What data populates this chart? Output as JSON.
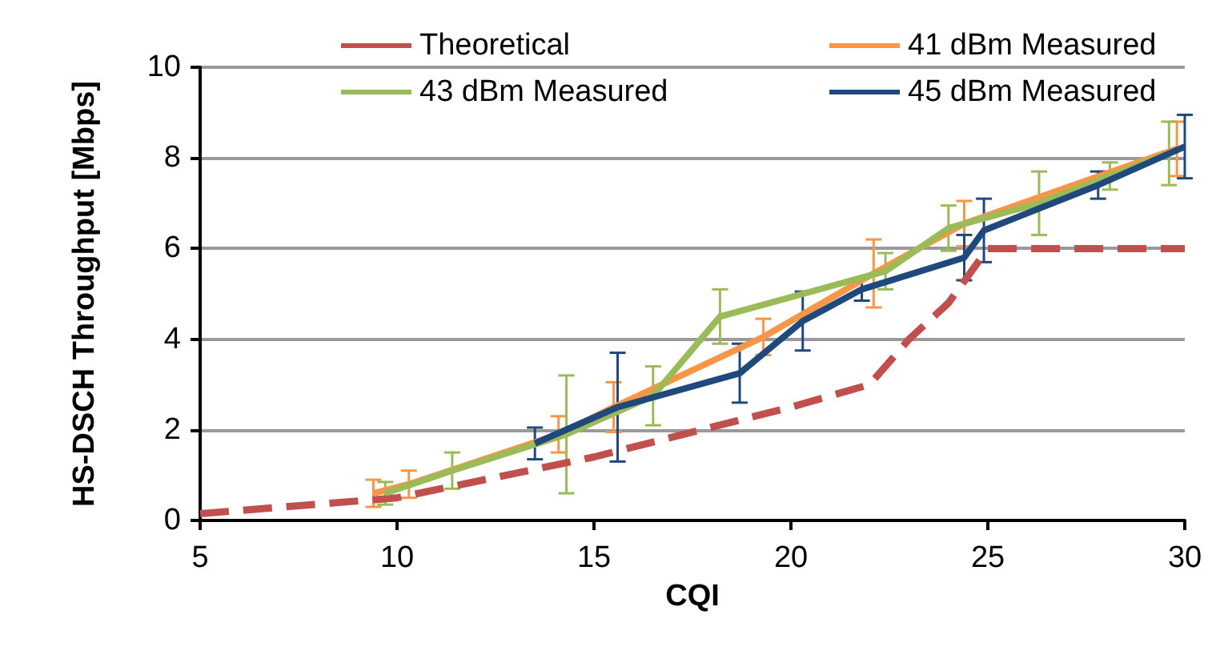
{
  "chart_data": {
    "type": "line",
    "xlabel": "CQI",
    "ylabel": "HS-DSCH Throughput [Mbps]",
    "xlim": [
      5,
      30
    ],
    "xticks": [
      5,
      10,
      15,
      20,
      25,
      30
    ],
    "ylim": [
      0,
      10
    ],
    "yticks": [
      0,
      2,
      4,
      6,
      8,
      10
    ],
    "grid": "y",
    "legend": "top",
    "marker": "none",
    "series": [
      {
        "name": "Theoretical",
        "color": "#c0504d",
        "line_style": "dashed",
        "x": [
          5,
          10,
          15,
          20,
          22,
          23,
          24,
          25,
          30
        ],
        "values": [
          0.15,
          0.5,
          1.4,
          2.5,
          3,
          4,
          4.8,
          6,
          6
        ]
      },
      {
        "name": "41 dBm Measured",
        "color": "#f79646",
        "line_style": "solid",
        "x": [
          9.4,
          10.3,
          14.1,
          15.5,
          19.3,
          22.1,
          24.4,
          29.8
        ],
        "values": [
          0.6,
          0.8,
          1.9,
          2.5,
          4.05,
          5.45,
          6.55,
          8.2
        ],
        "errors": [
          0.3,
          0.3,
          0.4,
          0.55,
          0.4,
          0.75,
          0.5,
          0.6
        ]
      },
      {
        "name": "43 dBm Measured",
        "color": "#9bbb59",
        "line_style": "solid",
        "x": [
          9.7,
          11.4,
          14.3,
          16.5,
          18.2,
          22.4,
          24.0,
          26.3,
          28.1,
          29.6
        ],
        "values": [
          0.6,
          1.1,
          1.9,
          2.75,
          4.5,
          5.5,
          6.45,
          7.0,
          7.6,
          8.1
        ],
        "errors": [
          0.25,
          0.4,
          1.3,
          0.65,
          0.6,
          0.4,
          0.5,
          0.7,
          0.3,
          0.7
        ]
      },
      {
        "name": "45 dBm Measured",
        "color": "#1f497d",
        "line_style": "solid",
        "x": [
          13.5,
          15.6,
          18.7,
          20.3,
          21.8,
          24.4,
          24.9,
          27.8,
          30
        ],
        "values": [
          1.7,
          2.5,
          3.25,
          4.4,
          5.1,
          5.8,
          6.4,
          7.4,
          8.25
        ],
        "errors": [
          0.35,
          1.2,
          0.65,
          0.65,
          0.25,
          0.5,
          0.7,
          0.3,
          0.7
        ]
      }
    ]
  }
}
